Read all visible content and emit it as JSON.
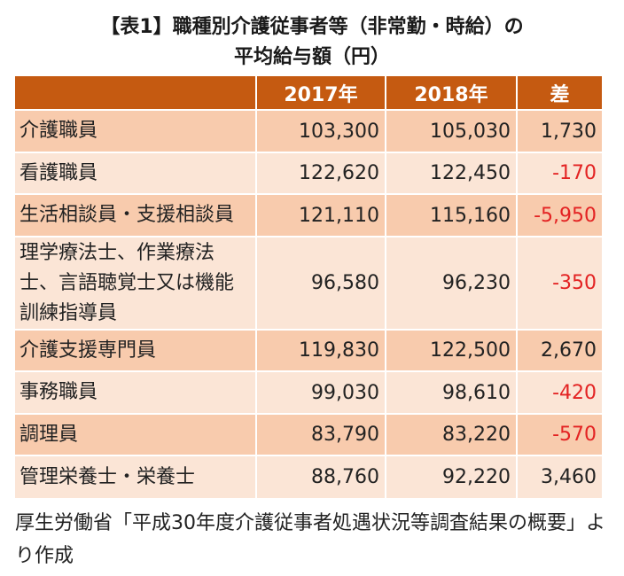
{
  "title": {
    "line1": "【表1】職種別介護従事者等（非常勤・時給）の",
    "line2": "平均給与額（円）"
  },
  "chart_data": {
    "type": "table",
    "title": "【表1】職種別介護従事者等（非常勤・時給）の平均給与額（円）",
    "columns": [
      "",
      "2017年",
      "2018年",
      "差"
    ],
    "rows": [
      {
        "label": "介護職員",
        "values": [
          "103,300",
          "105,030",
          "1,730"
        ],
        "negative": false
      },
      {
        "label": "看護職員",
        "values": [
          "122,620",
          "122,450",
          "-170"
        ],
        "negative": true
      },
      {
        "label": "生活相談員・支援相談員",
        "values": [
          "121,110",
          "115,160",
          "-5,950"
        ],
        "negative": true
      },
      {
        "label": "理学療法士、作業療法士、言語聴覚士又は機能訓練指導員",
        "values": [
          "96,580",
          "96,230",
          "-350"
        ],
        "negative": true
      },
      {
        "label": "介護支援専門員",
        "values": [
          "119,830",
          "122,500",
          "2,670"
        ],
        "negative": false
      },
      {
        "label": "事務職員",
        "values": [
          "99,030",
          "98,610",
          "-420"
        ],
        "negative": true
      },
      {
        "label": "調理員",
        "values": [
          "83,790",
          "83,220",
          "-570"
        ],
        "negative": true
      },
      {
        "label": "管理栄養士・栄養士",
        "values": [
          "88,760",
          "92,220",
          "3,460"
        ],
        "negative": false
      }
    ]
  },
  "source": "厚生労働省「平成30年度介護従事者処遇状況等調査結果の概要」より作成",
  "colors": {
    "header_bg": "#c55a11",
    "row_odd": "#f8cbad",
    "row_even": "#fbe5d6",
    "negative_text": "#e32222"
  }
}
